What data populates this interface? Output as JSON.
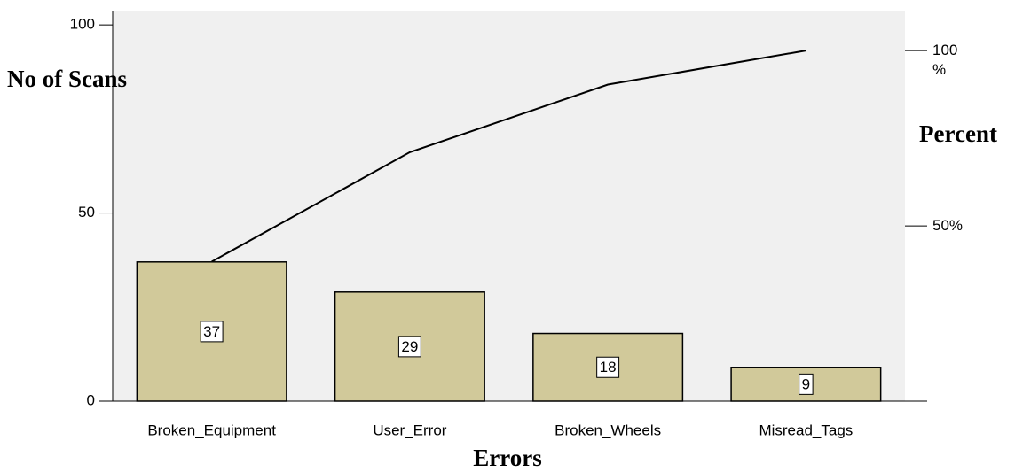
{
  "chart_data": {
    "type": "pareto",
    "x_label": "Errors",
    "y_label": "No of Scans",
    "y2_label": "Percent",
    "categories": [
      "Broken_Equipment",
      "User_Error",
      "Broken_Wheels",
      "Misread_Tags"
    ],
    "values": [
      37,
      29,
      18,
      9
    ],
    "color": "#d1c99a",
    "cumulative": {
      "values": [
        39.8,
        71.0,
        90.3,
        100
      ],
      "axis": "y2",
      "color": "#000000"
    },
    "ylim": [
      0,
      103.8
    ],
    "yticks": [
      0,
      50,
      100
    ],
    "y2lim": [
      0,
      111.4
    ],
    "y2ticks": [
      {
        "value": 50,
        "label": "50%"
      },
      {
        "value": 100,
        "label": "100 %"
      }
    ],
    "background": "#f0f0f0"
  }
}
